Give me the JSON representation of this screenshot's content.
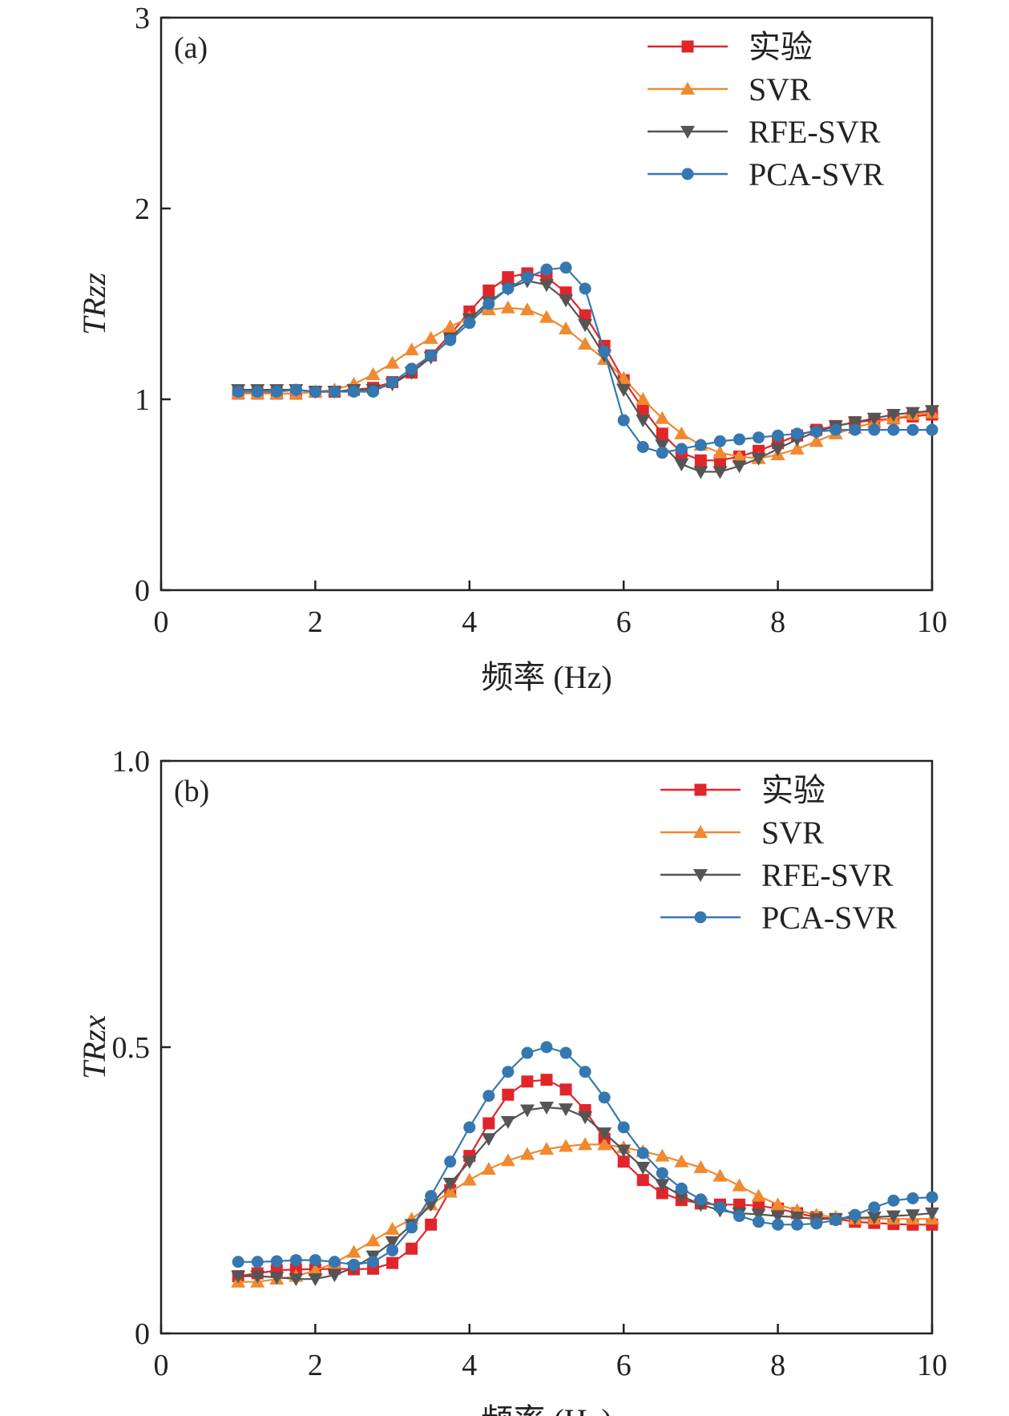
{
  "colors": {
    "实验": "#e0262b",
    "SVR": "#f0892f",
    "RFE-SVR": "#555555",
    "PCA-SVR": "#3577b0"
  },
  "chart_data": [
    {
      "type": "line",
      "panel_label": "(a)",
      "xlabel": "频率 (Hz)",
      "ylabel": "TRzz",
      "xlim": [
        0,
        10
      ],
      "ylim": [
        0,
        3
      ],
      "xticks": [
        0,
        2,
        4,
        6,
        8,
        10
      ],
      "yticks": [
        0,
        1,
        2,
        3
      ],
      "legend_position": "top-right",
      "x": [
        1.0,
        1.25,
        1.5,
        1.75,
        2.0,
        2.25,
        2.5,
        2.75,
        3.0,
        3.25,
        3.5,
        3.75,
        4.0,
        4.25,
        4.5,
        4.75,
        5.0,
        5.25,
        5.5,
        5.75,
        6.0,
        6.25,
        6.5,
        6.75,
        7.0,
        7.25,
        7.5,
        7.75,
        8.0,
        8.25,
        8.5,
        8.75,
        9.0,
        9.25,
        9.5,
        9.75,
        10.0
      ],
      "series": [
        {
          "name": "实验",
          "marker": "square",
          "values": [
            1.03,
            1.03,
            1.03,
            1.03,
            1.04,
            1.04,
            1.05,
            1.06,
            1.09,
            1.14,
            1.23,
            1.34,
            1.46,
            1.57,
            1.64,
            1.66,
            1.64,
            1.56,
            1.44,
            1.28,
            1.1,
            0.95,
            0.82,
            0.72,
            0.68,
            0.68,
            0.7,
            0.73,
            0.77,
            0.81,
            0.84,
            0.86,
            0.88,
            0.89,
            0.9,
            0.91,
            0.92
          ]
        },
        {
          "name": "SVR",
          "marker": "triangle-up",
          "values": [
            1.03,
            1.03,
            1.03,
            1.03,
            1.04,
            1.05,
            1.08,
            1.13,
            1.19,
            1.26,
            1.32,
            1.38,
            1.43,
            1.47,
            1.48,
            1.47,
            1.43,
            1.37,
            1.29,
            1.21,
            1.11,
            1.0,
            0.9,
            0.82,
            0.76,
            0.72,
            0.7,
            0.69,
            0.71,
            0.74,
            0.78,
            0.82,
            0.85,
            0.88,
            0.9,
            0.92,
            0.93
          ]
        },
        {
          "name": "RFE-SVR",
          "marker": "triangle-down",
          "values": [
            1.05,
            1.05,
            1.05,
            1.05,
            1.04,
            1.04,
            1.05,
            1.05,
            1.08,
            1.14,
            1.22,
            1.32,
            1.42,
            1.51,
            1.58,
            1.62,
            1.6,
            1.52,
            1.39,
            1.23,
            1.05,
            0.89,
            0.76,
            0.66,
            0.62,
            0.62,
            0.65,
            0.69,
            0.74,
            0.79,
            0.83,
            0.86,
            0.88,
            0.9,
            0.92,
            0.93,
            0.94
          ]
        },
        {
          "name": "PCA-SVR",
          "marker": "circle",
          "values": [
            1.04,
            1.04,
            1.04,
            1.05,
            1.04,
            1.04,
            1.04,
            1.04,
            1.09,
            1.16,
            1.23,
            1.31,
            1.4,
            1.5,
            1.58,
            1.64,
            1.68,
            1.69,
            1.58,
            1.25,
            0.89,
            0.75,
            0.72,
            0.74,
            0.76,
            0.78,
            0.79,
            0.8,
            0.81,
            0.82,
            0.83,
            0.84,
            0.84,
            0.84,
            0.84,
            0.84,
            0.84
          ]
        }
      ]
    },
    {
      "type": "line",
      "panel_label": "(b)",
      "xlabel": "频率 (Hz)",
      "ylabel": "TRzx",
      "xlim": [
        0,
        10
      ],
      "ylim": [
        0,
        1.0
      ],
      "xticks": [
        0,
        2,
        4,
        6,
        8,
        10
      ],
      "yticks": [
        0,
        0.5,
        1.0
      ],
      "ytick_labels": [
        "0",
        "0.5",
        "1.0"
      ],
      "legend_position": "top-right",
      "x": [
        1.0,
        1.25,
        1.5,
        1.75,
        2.0,
        2.25,
        2.5,
        2.75,
        3.0,
        3.25,
        3.5,
        3.75,
        4.0,
        4.25,
        4.5,
        4.75,
        5.0,
        5.25,
        5.5,
        5.75,
        6.0,
        6.25,
        6.5,
        6.75,
        7.0,
        7.25,
        7.5,
        7.75,
        8.0,
        8.25,
        8.5,
        8.75,
        9.0,
        9.25,
        9.5,
        9.75,
        10.0
      ],
      "series": [
        {
          "name": "实验",
          "marker": "square",
          "values": [
            0.1,
            0.105,
            0.11,
            0.112,
            0.112,
            0.113,
            0.112,
            0.113,
            0.123,
            0.148,
            0.19,
            0.25,
            0.31,
            0.367,
            0.417,
            0.44,
            0.443,
            0.426,
            0.39,
            0.34,
            0.3,
            0.268,
            0.245,
            0.233,
            0.227,
            0.225,
            0.225,
            0.223,
            0.218,
            0.21,
            0.203,
            0.2,
            0.195,
            0.193,
            0.191,
            0.19,
            0.19
          ]
        },
        {
          "name": "SVR",
          "marker": "triangle-up",
          "values": [
            0.09,
            0.09,
            0.095,
            0.1,
            0.11,
            0.123,
            0.142,
            0.162,
            0.182,
            0.2,
            0.225,
            0.247,
            0.268,
            0.287,
            0.302,
            0.313,
            0.322,
            0.327,
            0.33,
            0.33,
            0.325,
            0.318,
            0.31,
            0.3,
            0.29,
            0.275,
            0.258,
            0.24,
            0.225,
            0.215,
            0.207,
            0.203,
            0.2,
            0.2,
            0.2,
            0.2,
            0.2
          ]
        },
        {
          "name": "RFE-SVR",
          "marker": "triangle-down",
          "values": [
            0.1,
            0.1,
            0.098,
            0.095,
            0.095,
            0.102,
            0.115,
            0.135,
            0.16,
            0.19,
            0.225,
            0.262,
            0.3,
            0.34,
            0.37,
            0.39,
            0.395,
            0.392,
            0.378,
            0.35,
            0.32,
            0.29,
            0.26,
            0.24,
            0.225,
            0.215,
            0.21,
            0.208,
            0.205,
            0.203,
            0.2,
            0.2,
            0.202,
            0.203,
            0.205,
            0.207,
            0.21
          ]
        },
        {
          "name": "PCA-SVR",
          "marker": "circle",
          "values": [
            0.125,
            0.125,
            0.126,
            0.128,
            0.128,
            0.125,
            0.12,
            0.125,
            0.145,
            0.185,
            0.24,
            0.3,
            0.36,
            0.415,
            0.457,
            0.49,
            0.5,
            0.49,
            0.457,
            0.412,
            0.36,
            0.315,
            0.28,
            0.253,
            0.234,
            0.22,
            0.205,
            0.195,
            0.19,
            0.19,
            0.192,
            0.198,
            0.207,
            0.22,
            0.232,
            0.236,
            0.238
          ]
        }
      ]
    }
  ]
}
